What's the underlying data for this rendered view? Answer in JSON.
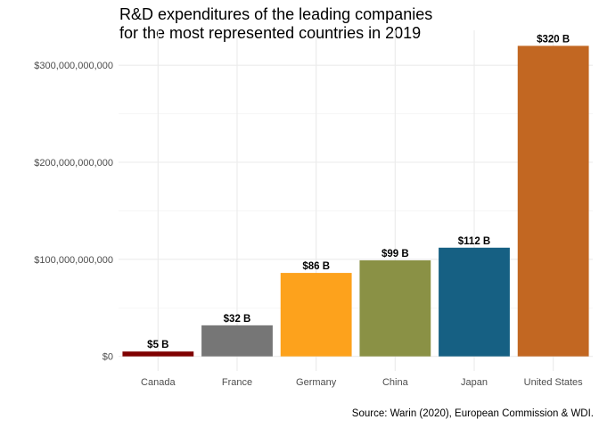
{
  "chart_data": {
    "type": "bar",
    "title_lines": [
      "R&D expenditures of the leading companies",
      "for the most represented countries in 2019"
    ],
    "caption": "Source: Warin (2020), European Commission & WDI.",
    "xlabel": "",
    "ylabel": "",
    "categories": [
      "Canada",
      "France",
      "Germany",
      "China",
      "Japan",
      "United States"
    ],
    "values": [
      5000000000,
      32000000000,
      86000000000,
      99000000000,
      112000000000,
      320000000000
    ],
    "data_labels": [
      "$5 B",
      "$32 B",
      "$86 B",
      "$99 B",
      "$112 B",
      "$320 B"
    ],
    "colors": [
      "#7f0000",
      "#767676",
      "#fda21c",
      "#8a9145",
      "#166083",
      "#c26722"
    ],
    "yticks": [
      0,
      100000000000,
      200000000000,
      300000000000
    ],
    "ytick_labels": [
      "$0",
      "$100,000,000,000",
      "$200,000,000,000",
      "$300,000,000,000"
    ],
    "ylim": [
      -15000000000,
      336000000000
    ],
    "grid": true,
    "legend": "none"
  }
}
